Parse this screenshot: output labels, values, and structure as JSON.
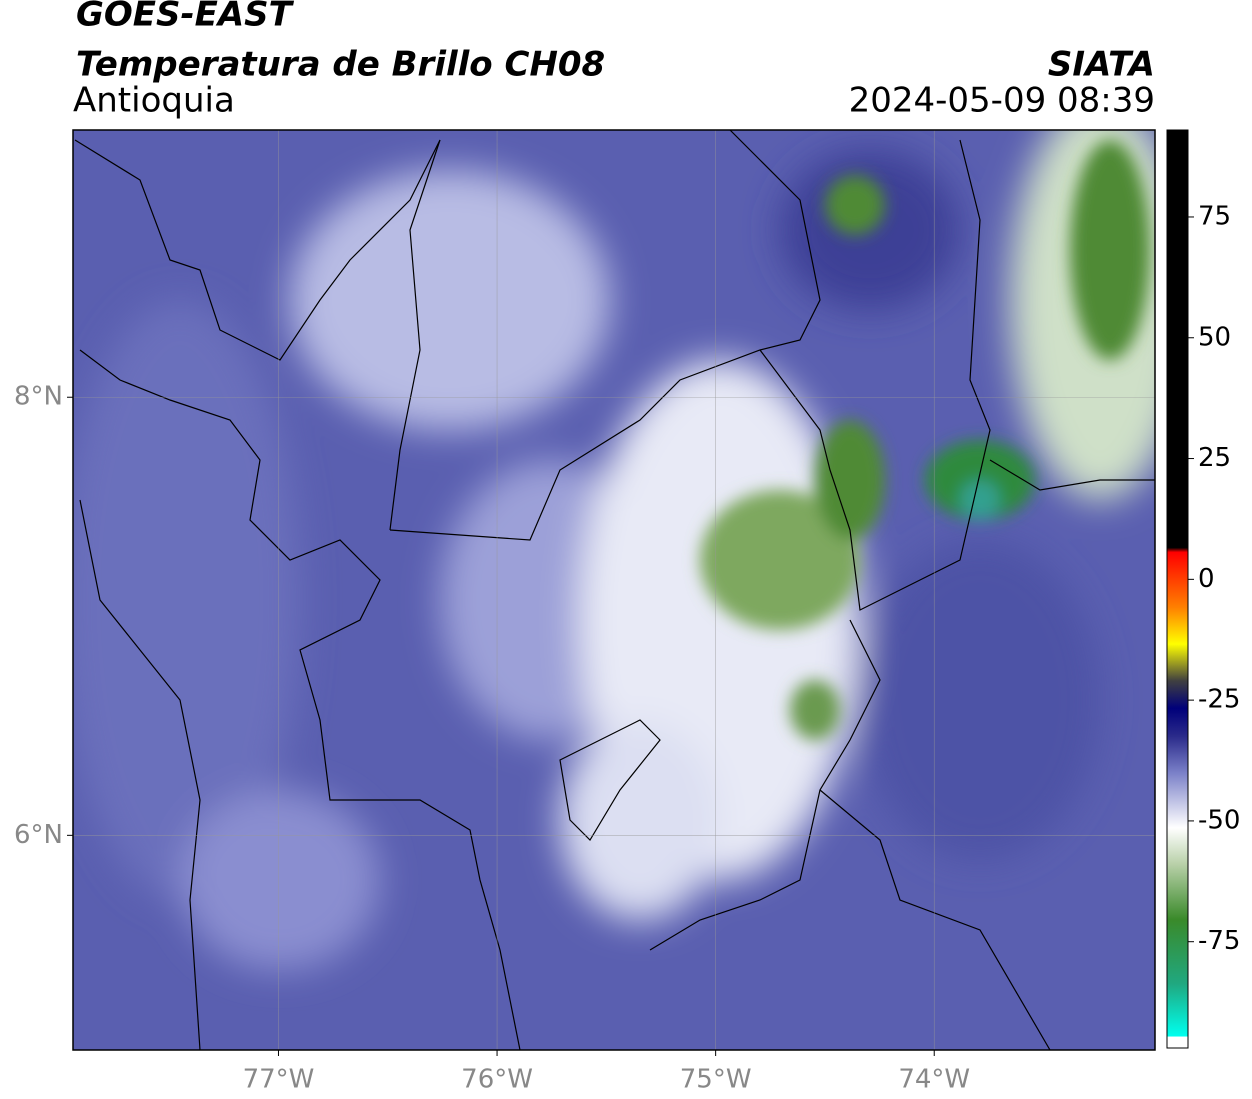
{
  "header": {
    "title": "GOES-EAST",
    "subtitle": "Temperatura de Brillo CH08",
    "region": "Antioquia",
    "source": "SIATA",
    "datetime": "2024-05-09 08:39"
  },
  "map": {
    "xlim": [
      -77.94,
      -72.99
    ],
    "ylim": [
      5.02,
      9.22
    ],
    "xticks": [
      {
        "value": -77,
        "label": "77°W"
      },
      {
        "value": -76,
        "label": "76°W"
      },
      {
        "value": -75,
        "label": "75°W"
      },
      {
        "value": -74,
        "label": "74°W"
      }
    ],
    "yticks": [
      {
        "value": 6,
        "label": "6°N"
      },
      {
        "value": 8,
        "label": "8°N"
      }
    ],
    "grid": true
  },
  "colorbar": {
    "lim": [
      -97,
      93
    ],
    "ticks": [
      -75,
      -50,
      -25,
      0,
      25,
      50,
      75
    ]
  }
}
